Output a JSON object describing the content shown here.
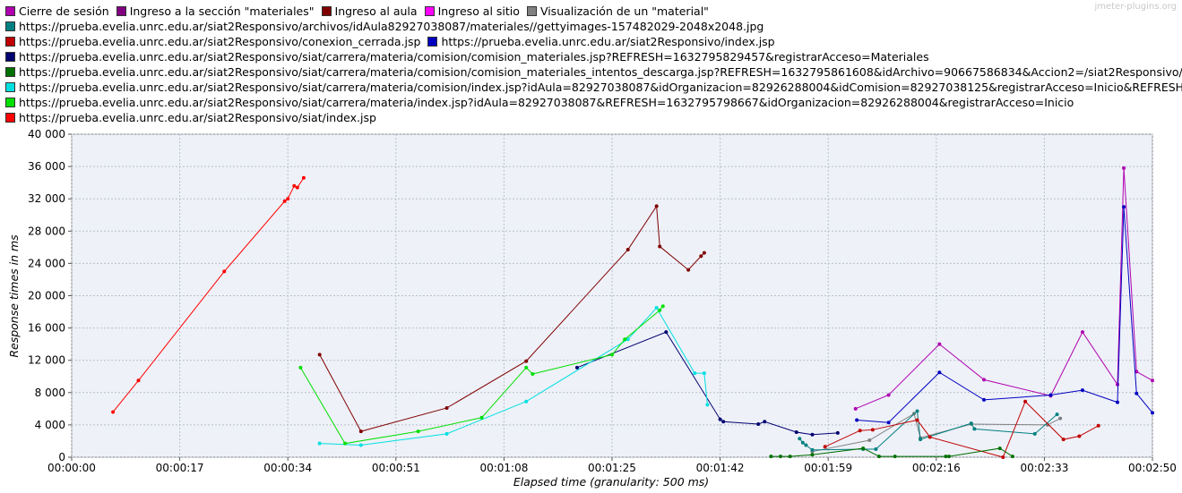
{
  "watermark": "jmeter-plugins.org",
  "legend_rows": [
    [
      0,
      1,
      2,
      3,
      4
    ],
    [
      5
    ],
    [
      6,
      7
    ],
    [
      8
    ],
    [
      9
    ],
    [
      10
    ],
    [
      11
    ],
    [
      12
    ]
  ],
  "chart_data": {
    "type": "line",
    "xlabel": "Elapsed time (granularity: 500 ms)",
    "ylabel": "Response times in ms",
    "xlim": [
      0,
      170
    ],
    "ylim": [
      0,
      40000
    ],
    "x_ticks": [
      0,
      17,
      34,
      51,
      68,
      85,
      102,
      119,
      136,
      153,
      170
    ],
    "x_tick_labels": [
      "00:00:00",
      "00:00:17",
      "00:00:34",
      "00:00:51",
      "00:01:08",
      "00:01:25",
      "00:01:42",
      "00:01:59",
      "00:02:16",
      "00:02:33",
      "00:02:50"
    ],
    "y_ticks": [
      0,
      4000,
      8000,
      12000,
      16000,
      20000,
      24000,
      28000,
      32000,
      36000,
      40000
    ],
    "y_tick_labels": [
      "0",
      "4 000",
      "8 000",
      "12 000",
      "16 000",
      "20 000",
      "24 000",
      "28 000",
      "32 000",
      "36 000",
      "40 000"
    ],
    "grid": true,
    "legend_position": "top",
    "series": [
      {
        "name": "Cierre de sesión",
        "color": "#b000b0",
        "points": [
          [
            123.3,
            6000
          ],
          [
            128.5,
            7700
          ],
          [
            136.5,
            14000
          ],
          [
            143.5,
            9600
          ],
          [
            154,
            7600
          ],
          [
            159,
            15500
          ],
          [
            164.5,
            9000
          ],
          [
            165.5,
            35800
          ],
          [
            167.5,
            10600
          ],
          [
            170,
            9500
          ]
        ]
      },
      {
        "name": "Ingreso a la sección \"materiales\"",
        "color": "#800080",
        "points": []
      },
      {
        "name": "Ingreso al aula",
        "color": "#800000",
        "points": [
          [
            39,
            12700
          ],
          [
            45.5,
            3200
          ],
          [
            59,
            6100
          ],
          [
            71.5,
            11900
          ],
          [
            87.5,
            25700
          ],
          [
            92,
            31100
          ],
          [
            92.5,
            26100
          ],
          [
            97,
            23200
          ],
          [
            99,
            24900
          ],
          [
            99.5,
            25300
          ]
        ]
      },
      {
        "name": "Ingreso al sitio",
        "color": "#ff00ff",
        "points": []
      },
      {
        "name": "Visualización de un \"material\"",
        "color": "#808080",
        "points": [
          [
            116.5,
            700
          ],
          [
            125.5,
            2100
          ],
          [
            132.5,
            5400
          ],
          [
            133.5,
            2400
          ],
          [
            141.5,
            4100
          ],
          [
            153.5,
            4000
          ],
          [
            155.5,
            4800
          ]
        ]
      },
      {
        "name": "https://prueba.evelia.unrc.edu.ar/siat2Responsivo/archivos/idAula82927038087/materiales//gettyimages-157482029-2048x2048.jpg",
        "color": "#008080",
        "points": [
          [
            114.5,
            2300
          ],
          [
            115,
            1800
          ],
          [
            115.5,
            1500
          ],
          [
            116.5,
            900
          ],
          [
            124.5,
            1000
          ],
          [
            126.5,
            1000
          ],
          [
            133,
            5700
          ],
          [
            133.5,
            2200
          ],
          [
            141.5,
            4200
          ],
          [
            142,
            3500
          ],
          [
            151.5,
            2900
          ],
          [
            155,
            5300
          ]
        ]
      },
      {
        "name": "https://prueba.evelia.unrc.edu.ar/siat2Responsivo/conexion_cerrada.jsp",
        "color": "#c00000",
        "points": [
          [
            118.5,
            1300
          ],
          [
            124,
            3300
          ],
          [
            126,
            3400
          ],
          [
            133,
            4600
          ],
          [
            135,
            2500
          ],
          [
            146.5,
            0
          ],
          [
            150,
            6900
          ],
          [
            156,
            2200
          ],
          [
            158.5,
            2600
          ],
          [
            161.5,
            3900
          ]
        ]
      },
      {
        "name": "https://prueba.evelia.unrc.edu.ar/siat2Responsivo/index.jsp",
        "color": "#0000c0",
        "points": [
          [
            123.5,
            4600
          ],
          [
            128.5,
            4300
          ],
          [
            136.5,
            10500
          ],
          [
            143.5,
            7100
          ],
          [
            154,
            7700
          ],
          [
            159,
            8300
          ],
          [
            164.5,
            6800
          ],
          [
            165.5,
            31000
          ],
          [
            167.5,
            7900
          ],
          [
            170,
            5500
          ]
        ]
      },
      {
        "name": "https://prueba.evelia.unrc.edu.ar/siat2Responsivo/siat/carrera/materia/comision/comision_materiales.jsp?REFRESH=1632795829457&registrarAcceso=Materiales",
        "color": "#000070",
        "points": [
          [
            79.5,
            11100
          ],
          [
            93.5,
            15500
          ],
          [
            102,
            4700
          ],
          [
            102.5,
            4400
          ],
          [
            108,
            4100
          ],
          [
            109,
            4400
          ],
          [
            114,
            3100
          ],
          [
            116.5,
            2800
          ],
          [
            120.5,
            3000
          ]
        ]
      },
      {
        "name": "https://prueba.evelia.unrc.edu.ar/siat2Responsivo/siat/carrera/materia/comision/comision_materiales_intentos_descarga.jsp?REFRESH=1632795861608&idArchivo=90667586834&Accion2=/siat2Responsivo/",
        "color": "#007000",
        "points": [
          [
            110,
            100
          ],
          [
            111.5,
            100
          ],
          [
            113,
            100
          ],
          [
            116.5,
            300
          ],
          [
            124.5,
            1100
          ],
          [
            127,
            100
          ],
          [
            129.5,
            100
          ],
          [
            137.5,
            100
          ],
          [
            138,
            100
          ],
          [
            146,
            1100
          ],
          [
            148,
            100
          ]
        ]
      },
      {
        "name": "https://prueba.evelia.unrc.edu.ar/siat2Responsivo/siat/carrera/materia/comision/index.jsp?idAula=82927038087&idOrganizacion=82926288004&idComision=82927038125&registrarAcceso=Inicio&REFRESH=",
        "color": "#00e0e0",
        "points": [
          [
            39,
            1700
          ],
          [
            45.5,
            1500
          ],
          [
            59,
            2900
          ],
          [
            71.5,
            6900
          ],
          [
            87.5,
            14600
          ],
          [
            92,
            18500
          ],
          [
            98,
            10400
          ],
          [
            99.5,
            10400
          ],
          [
            100,
            6500
          ]
        ]
      },
      {
        "name": "https://prueba.evelia.unrc.edu.ar/siat2Responsivo/siat/carrera/materia/index.jsp?idAula=82927038087&REFRESH=1632795798667&idOrganizacion=82926288004&registrarAcceso=Inicio",
        "color": "#00e000",
        "points": [
          [
            36,
            11100
          ],
          [
            43,
            1700
          ],
          [
            54.5,
            3200
          ],
          [
            64.5,
            4900
          ],
          [
            71.5,
            11100
          ],
          [
            72.5,
            10300
          ],
          [
            85,
            12700
          ],
          [
            87,
            14600
          ],
          [
            92.5,
            18200
          ],
          [
            93,
            18700
          ]
        ]
      },
      {
        "name": "https://prueba.evelia.unrc.edu.ar/siat2Responsivo/siat/index.jsp",
        "color": "#ff0000",
        "points": [
          [
            6.5,
            5600
          ],
          [
            10.5,
            9500
          ],
          [
            24,
            23000
          ],
          [
            33.5,
            31700
          ],
          [
            34,
            32000
          ],
          [
            35,
            33600
          ],
          [
            35.5,
            33400
          ],
          [
            36.5,
            34600
          ]
        ]
      }
    ]
  }
}
